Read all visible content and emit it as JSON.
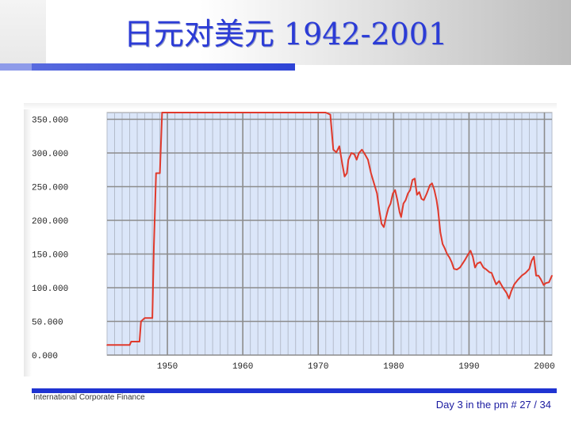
{
  "slide": {
    "title": "日元对美元 1942-2001",
    "footer_left": "International Corporate Finance",
    "footer_right": "Day 3 in the pm # 27 / 34"
  },
  "colors": {
    "title": "#2b3bd6",
    "accent_bar": "#2034d2",
    "plot_background": "#dbe6f9",
    "grid": "#8c8c8c",
    "series": "#e03a2c"
  },
  "chart_data": {
    "type": "line",
    "title": "",
    "xlabel": "",
    "ylabel": "",
    "xlim": [
      1942,
      2001
    ],
    "ylim": [
      0,
      360
    ],
    "x_ticks": [
      "1950",
      "1960",
      "1970",
      "1980",
      "1990",
      "2000"
    ],
    "y_ticks": [
      "0.000",
      "50.000",
      "100.000",
      "150.000",
      "200.000",
      "250.000",
      "300.000",
      "350.000"
    ],
    "grid": true,
    "series": [
      {
        "values": [
          [
            1942.0,
            15
          ],
          [
            1945.0,
            15
          ],
          [
            1945.2,
            20
          ],
          [
            1946.3,
            20
          ],
          [
            1946.5,
            50
          ],
          [
            1947.0,
            55
          ],
          [
            1948.0,
            55
          ],
          [
            1948.2,
            160
          ],
          [
            1948.5,
            270
          ],
          [
            1949.0,
            270
          ],
          [
            1949.3,
            360
          ],
          [
            1953.0,
            360
          ],
          [
            1956.0,
            360
          ],
          [
            1960.0,
            360
          ],
          [
            1963.0,
            360
          ],
          [
            1967.0,
            360
          ],
          [
            1971.0,
            360
          ],
          [
            1971.6,
            357
          ],
          [
            1972.0,
            305
          ],
          [
            1972.4,
            301
          ],
          [
            1972.8,
            310
          ],
          [
            1973.2,
            283
          ],
          [
            1973.5,
            265
          ],
          [
            1973.8,
            270
          ],
          [
            1974.0,
            290
          ],
          [
            1974.4,
            300
          ],
          [
            1974.8,
            298
          ],
          [
            1975.1,
            290
          ],
          [
            1975.4,
            300
          ],
          [
            1975.8,
            305
          ],
          [
            1976.2,
            298
          ],
          [
            1976.6,
            290
          ],
          [
            1977.0,
            270
          ],
          [
            1977.4,
            255
          ],
          [
            1977.8,
            240
          ],
          [
            1978.1,
            215
          ],
          [
            1978.4,
            195
          ],
          [
            1978.7,
            190
          ],
          [
            1979.0,
            205
          ],
          [
            1979.3,
            218
          ],
          [
            1979.6,
            225
          ],
          [
            1979.9,
            240
          ],
          [
            1980.2,
            245
          ],
          [
            1980.5,
            230
          ],
          [
            1980.8,
            212
          ],
          [
            1981.0,
            205
          ],
          [
            1981.3,
            225
          ],
          [
            1981.6,
            230
          ],
          [
            1981.9,
            240
          ],
          [
            1982.2,
            245
          ],
          [
            1982.5,
            260
          ],
          [
            1982.8,
            262
          ],
          [
            1983.1,
            238
          ],
          [
            1983.4,
            242
          ],
          [
            1983.7,
            232
          ],
          [
            1984.0,
            230
          ],
          [
            1984.4,
            240
          ],
          [
            1984.8,
            252
          ],
          [
            1985.1,
            255
          ],
          [
            1985.4,
            245
          ],
          [
            1985.7,
            230
          ],
          [
            1985.9,
            215
          ],
          [
            1986.2,
            182
          ],
          [
            1986.5,
            165
          ],
          [
            1986.8,
            158
          ],
          [
            1987.1,
            150
          ],
          [
            1987.4,
            145
          ],
          [
            1987.7,
            138
          ],
          [
            1988.0,
            128
          ],
          [
            1988.4,
            127
          ],
          [
            1988.8,
            130
          ],
          [
            1989.1,
            135
          ],
          [
            1989.5,
            142
          ],
          [
            1989.9,
            150
          ],
          [
            1990.2,
            155
          ],
          [
            1990.5,
            146
          ],
          [
            1990.8,
            130
          ],
          [
            1991.1,
            136
          ],
          [
            1991.5,
            138
          ],
          [
            1991.9,
            130
          ],
          [
            1992.3,
            127
          ],
          [
            1992.7,
            123
          ],
          [
            1993.0,
            122
          ],
          [
            1993.3,
            113
          ],
          [
            1993.6,
            105
          ],
          [
            1994.0,
            110
          ],
          [
            1994.5,
            100
          ],
          [
            1995.0,
            92
          ],
          [
            1995.3,
            84
          ],
          [
            1995.6,
            95
          ],
          [
            1996.0,
            105
          ],
          [
            1996.5,
            112
          ],
          [
            1997.0,
            118
          ],
          [
            1997.5,
            122
          ],
          [
            1998.0,
            128
          ],
          [
            1998.3,
            140
          ],
          [
            1998.6,
            146
          ],
          [
            1998.9,
            118
          ],
          [
            1999.2,
            118
          ],
          [
            1999.5,
            113
          ],
          [
            1999.9,
            104
          ],
          [
            2000.2,
            107
          ],
          [
            2000.6,
            108
          ],
          [
            2001.0,
            118
          ]
        ]
      }
    ]
  }
}
